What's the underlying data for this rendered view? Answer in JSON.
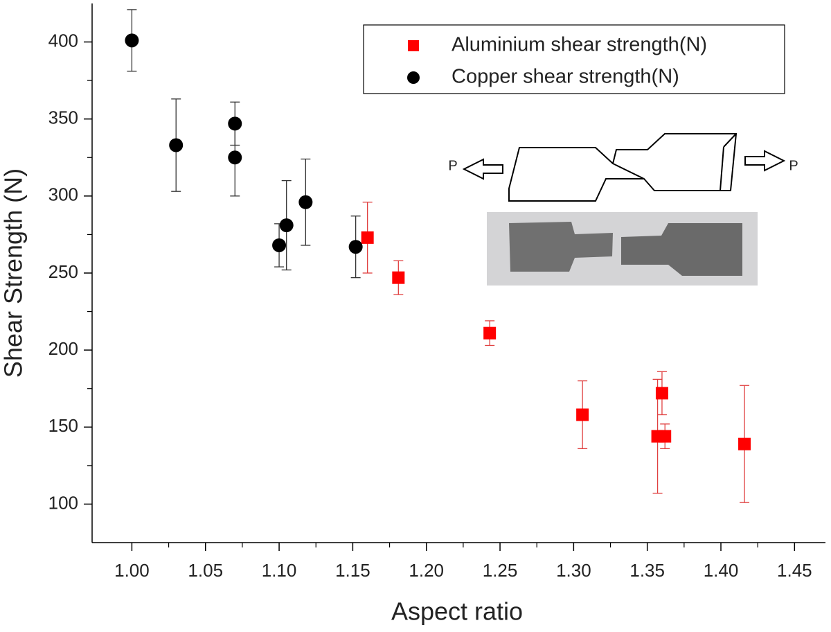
{
  "chart_data": {
    "type": "scatter",
    "x_label": "Aspect ratio",
    "y_label": "Shear Strength (N)",
    "xlim": [
      0.973,
      1.471
    ],
    "ylim": [
      75,
      425
    ],
    "xticks": [
      {
        "value": 1.0,
        "label": "1.00"
      },
      {
        "value": 1.05,
        "label": "1.05"
      },
      {
        "value": 1.1,
        "label": "1.10"
      },
      {
        "value": 1.15,
        "label": "1.15"
      },
      {
        "value": 1.2,
        "label": "1.20"
      },
      {
        "value": 1.25,
        "label": "1.25"
      },
      {
        "value": 1.3,
        "label": "1.30"
      },
      {
        "value": 1.35,
        "label": "1.35"
      },
      {
        "value": 1.4,
        "label": "1.40"
      },
      {
        "value": 1.45,
        "label": "1.45"
      }
    ],
    "yticks": [
      100,
      150,
      200,
      250,
      300,
      350,
      400
    ],
    "legend": "upper-right",
    "inset_labels": [
      "P",
      "P"
    ],
    "series": [
      {
        "name": "Aluminium shear strength(N)",
        "color": "#ff0000",
        "marker": "square",
        "x": [
          1.16,
          1.181,
          1.243,
          1.306,
          1.357,
          1.36,
          1.362,
          1.416
        ],
        "values": [
          273,
          247,
          211,
          158,
          144,
          172,
          144,
          139
        ],
        "errors": [
          23,
          11,
          8,
          22,
          37,
          14,
          8,
          38
        ]
      },
      {
        "name": "Copper shear strength(N)",
        "color": "#000000",
        "marker": "circle",
        "x": [
          1.0,
          1.03,
          1.07,
          1.07,
          1.1,
          1.105,
          1.118,
          1.152
        ],
        "values": [
          401,
          333,
          347,
          325,
          268,
          281,
          296,
          267
        ],
        "errors": [
          20,
          30,
          14,
          25,
          14,
          29,
          28,
          20
        ]
      }
    ]
  }
}
